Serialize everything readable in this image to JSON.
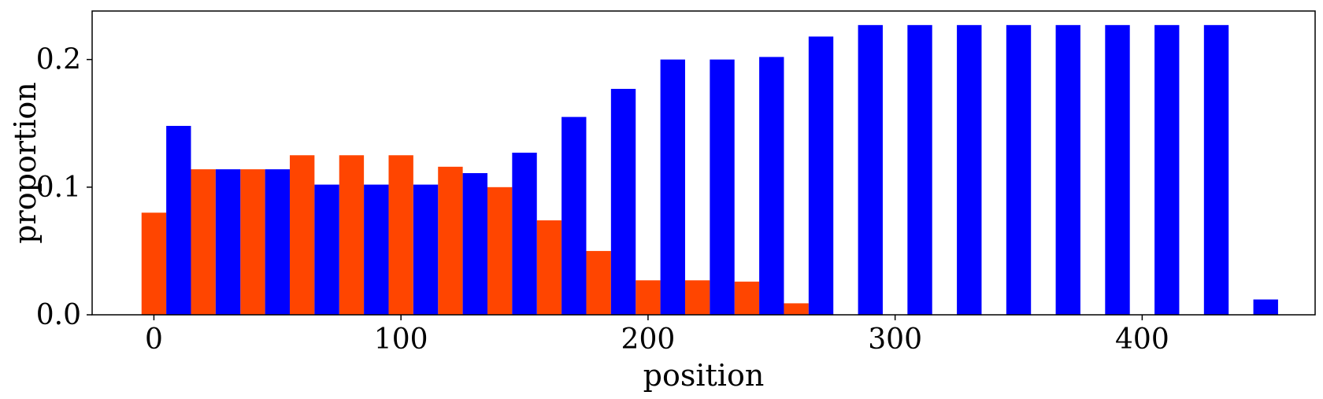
{
  "chart_data": {
    "type": "bar",
    "title": "",
    "xlabel": "position",
    "ylabel": "proportion",
    "xlim": [
      -25,
      470
    ],
    "ylim": [
      0,
      0.238
    ],
    "xticks": [
      0,
      100,
      200,
      300,
      400
    ],
    "yticks": [
      0.0,
      0.1,
      0.2
    ],
    "xtick_labels": [
      "0",
      "100",
      "200",
      "300",
      "400"
    ],
    "ytick_labels": [
      "0.0",
      "0.1",
      "0.2"
    ],
    "grid": false,
    "bar_width": 10,
    "series": [
      {
        "color": "#ff4500",
        "x": [
          0,
          20,
          40,
          60,
          80,
          100,
          120,
          140,
          160,
          180,
          200,
          220,
          240,
          260
        ],
        "values": [
          0.08,
          0.114,
          0.114,
          0.125,
          0.125,
          0.125,
          0.116,
          0.1,
          0.074,
          0.05,
          0.027,
          0.027,
          0.026,
          0.009
        ]
      },
      {
        "color": "#0000ff",
        "x": [
          10,
          30,
          50,
          70,
          90,
          110,
          130,
          150,
          170,
          190,
          210,
          230,
          250,
          270,
          290,
          310,
          330,
          350,
          370,
          390,
          410,
          430,
          450
        ],
        "values": [
          0.148,
          0.114,
          0.114,
          0.102,
          0.102,
          0.102,
          0.111,
          0.127,
          0.155,
          0.177,
          0.2,
          0.2,
          0.202,
          0.218,
          0.227,
          0.227,
          0.227,
          0.227,
          0.227,
          0.227,
          0.227,
          0.227,
          0.012
        ]
      }
    ]
  }
}
